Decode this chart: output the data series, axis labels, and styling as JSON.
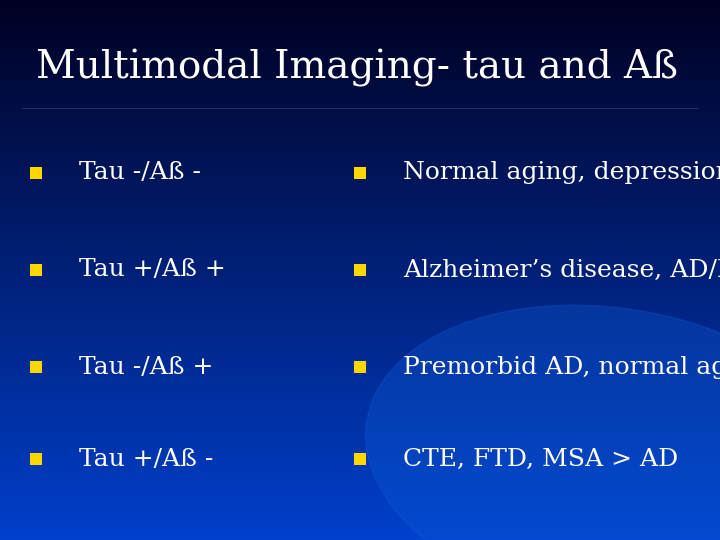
{
  "title": "Multimodal Imaging- tau and Aß",
  "title_color": "#FFFFFF",
  "bullet_color": "#FFD700",
  "text_color": "#FFFFFF",
  "title_fontsize": 28,
  "bullet_fontsize": 18,
  "bg_top": "#000020",
  "bg_mid": "#003090",
  "bg_bottom": "#0044CC",
  "rows": [
    {
      "left": "Tau -/Aß -",
      "right": "Normal aging, depression, meds"
    },
    {
      "left": "Tau +/Aß +",
      "right": "Alzheimer’s disease, AD/LBD"
    },
    {
      "left": "Tau -/Aß +",
      "right": "Premorbid AD, normal aging"
    },
    {
      "left": "Tau +/Aß -",
      "right": "CTE, FTD, MSA > AD"
    }
  ]
}
